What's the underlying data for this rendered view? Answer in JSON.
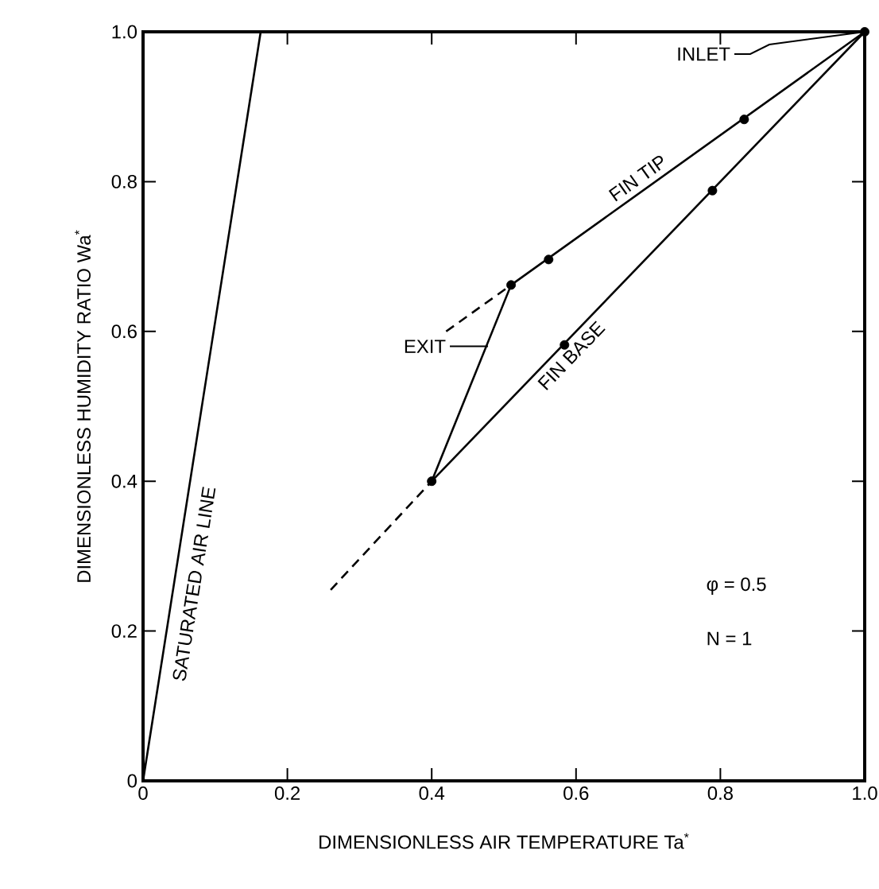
{
  "chart_data": {
    "type": "line",
    "xlabel": "DIMENSIONLESS AIR TEMPERATURE Ta$^{*}$",
    "ylabel": "DIMENSIONLESS HUMIDITY RATIO Wa$^{*}$",
    "xlim": [
      0,
      1
    ],
    "ylim": [
      0,
      1
    ],
    "xticks": [
      0,
      0.2,
      0.4,
      0.6,
      0.8,
      {
        "value": 1,
        "label": "1.0"
      }
    ],
    "yticks": [
      0,
      0.2,
      0.4,
      0.6,
      0.8,
      {
        "value": 1,
        "label": "1.0"
      }
    ],
    "grid": false,
    "legend": false,
    "color": "#000000",
    "line_style": "solid",
    "series": [
      {
        "name": "SATURATED AIR LINE",
        "x": [
          0,
          0.163
        ],
        "values": [
          0,
          1
        ]
      },
      {
        "name": "FIN TIP",
        "x": [
          0.51,
          1
        ],
        "values": [
          0.662,
          1
        ]
      },
      {
        "name": "FIN BASE",
        "x": [
          0.4,
          1
        ],
        "values": [
          0.4,
          1
        ]
      },
      {
        "x": [
          0.4,
          0.51
        ],
        "values": [
          0.4,
          0.662
        ]
      },
      {
        "x": [
          0.42,
          0.51
        ],
        "values": [
          0.6,
          0.662
        ],
        "line_style": "dashed"
      },
      {
        "x": [
          0.26,
          0.4
        ],
        "values": [
          0.255,
          0.4
        ],
        "line_style": "dashed"
      },
      {
        "type": "scatter",
        "marker": "circle",
        "x": [
          0.4,
          0.51,
          0.562,
          0.833,
          0.584,
          0.789,
          1
        ],
        "values": [
          0.4,
          0.662,
          0.696,
          0.883,
          0.582,
          0.788,
          1
        ]
      }
    ],
    "annotations": [
      {
        "text": "INLET",
        "x": 1,
        "y": 1
      },
      {
        "text": "EXIT",
        "x": 0.478,
        "y": 0.58
      },
      "φ = 0.5",
      "N = 1"
    ]
  }
}
